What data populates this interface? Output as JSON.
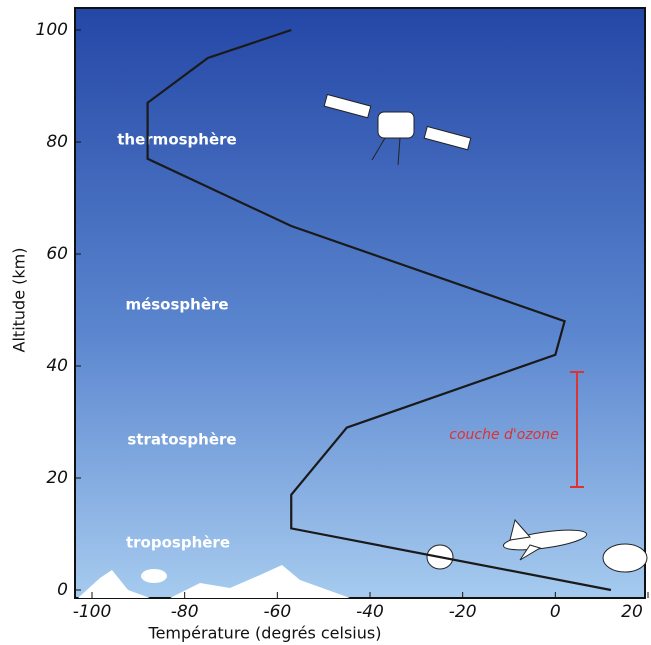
{
  "chart_data": {
    "type": "line",
    "x_label": "Température (degrés celsius)",
    "y_label": "Altitude (km)",
    "x": [
      12,
      -57,
      -57,
      -45,
      0,
      2,
      -57,
      -88,
      -88,
      -75,
      -57
    ],
    "values": [
      0,
      11,
      17,
      29,
      42,
      48,
      65,
      77,
      87,
      95,
      100
    ],
    "color": "#1a1a1a",
    "xlim": [
      -100,
      20
    ],
    "xticks": [
      -100,
      -80,
      -60,
      -40,
      -20,
      0,
      20
    ],
    "ylim": [
      0,
      100
    ],
    "yticks": [
      0,
      20,
      40,
      60,
      80,
      100
    ],
    "layers": [
      "thermosphère",
      "mésosphère",
      "stratosphère",
      "troposphère"
    ],
    "ozone_label": "couche d'ozone"
  }
}
